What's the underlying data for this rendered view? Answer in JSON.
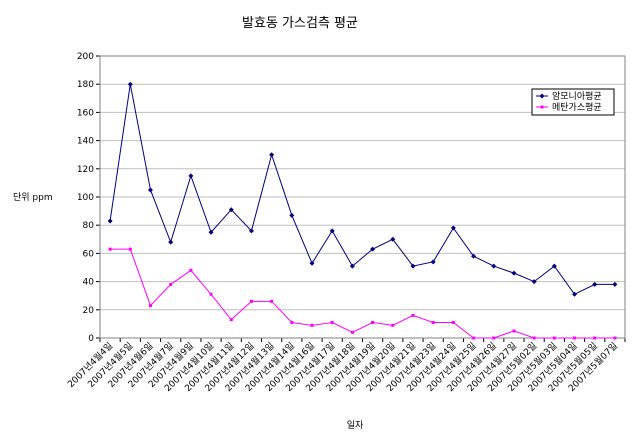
{
  "chart_data": {
    "type": "line",
    "title": "발효동 가스검측 평균",
    "xlabel": "일자",
    "ylabel": "단위 ppm",
    "ylim": [
      0,
      200
    ],
    "yticks": [
      0,
      20,
      40,
      60,
      80,
      100,
      120,
      140,
      160,
      180,
      200
    ],
    "grid": "horizontal",
    "legend_position": "right",
    "categories": [
      "2007년4월4일",
      "2007년4월5일",
      "2007년4월6일",
      "2007년4월7일",
      "2007년4월9일",
      "2007년4월10일",
      "2007년4월11일",
      "2007년4월12일",
      "2007년4월13일",
      "2007년4월14일",
      "2007년4월16일",
      "2007년4월17일",
      "2007년4월18일",
      "2007년4월19일",
      "2007년4월20일",
      "2007년4월21일",
      "2007년4월23일",
      "2007년4월24일",
      "2007년4월25일",
      "2007년4월26일",
      "2007년4월27일",
      "2007년5월02일",
      "2007년5월03일",
      "2007년5월04일",
      "2007년5월05일",
      "2007년5월07일"
    ],
    "categories_labeled": [
      "2007년4월4일",
      "2007년4월5일",
      "2007년4월6일",
      "2007년4월7일",
      "2007년4월9일",
      "2007년4월10일",
      "2007년4월11일",
      "2007년4월12일",
      "2007년4월13일",
      "2007년4월14일",
      "2007년4월16일",
      "2007년4월17일",
      "2007년4월18일",
      "2007년4월19일",
      "2007년4월20일",
      "2007년4월21일",
      "2007년4월23일",
      "2007년4월24일",
      "2007년4월25일",
      "2007년4월26일",
      "2007년4월27일",
      "2007년5월02일",
      "2007년5월03일",
      "2007년5월04일",
      "2007년5월05일",
      "2007년5월07일"
    ],
    "series": [
      {
        "name": "암모니아평균",
        "color": "#000080",
        "marker": "diamond",
        "values": [
          83,
          180,
          105,
          68,
          115,
          75,
          91,
          76,
          130,
          87,
          53,
          76,
          51,
          63,
          70,
          51,
          54,
          78,
          58,
          51,
          46,
          40,
          51,
          31,
          38,
          38
        ]
      },
      {
        "name": "메탄가스평균",
        "color": "#ff00ff",
        "marker": "square",
        "values": [
          63,
          63,
          23,
          38,
          48,
          31,
          13,
          26,
          26,
          11,
          9,
          11,
          4,
          11,
          9,
          16,
          11,
          11,
          0,
          0,
          5,
          0,
          0,
          0,
          0,
          0
        ]
      }
    ]
  }
}
